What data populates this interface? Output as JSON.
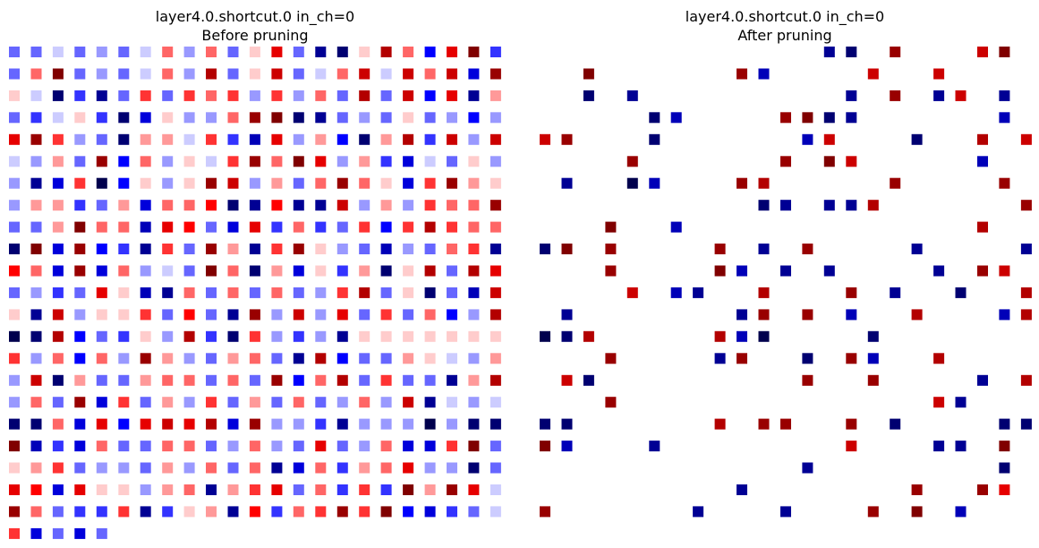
{
  "chart_data": [
    {
      "type": "heatmap",
      "title": "layer4.0.shortcut.0 in_ch=0",
      "subtitle": "Before pruning",
      "colormap": "seismic",
      "color_limits": [
        -1,
        1
      ],
      "axes": "off",
      "grid": false,
      "rows": 23,
      "cols": 23,
      "values": [
        [
          -0.3,
          -0.3,
          -0.1,
          -0.3,
          -0.2,
          -0.3,
          -0.1,
          0.3,
          -0.2,
          0.3,
          -0.3,
          0.1,
          0.6,
          -0.3,
          -0.8,
          -0.9,
          0.1,
          0.8,
          0.3,
          -0.5,
          0.6,
          1,
          -0.4
        ],
        [
          -0.3,
          0.3,
          1,
          -0.3,
          -0.2,
          -0.3,
          -0.1,
          0.3,
          -0.2,
          0.8,
          -0.3,
          0.1,
          0.7,
          -0.3,
          -0.1,
          0.3,
          0.7,
          -0.1,
          0.7,
          0.3,
          0.7,
          -0.6,
          0.9
        ],
        [
          0.1,
          -0.1,
          -0.9,
          -0.4,
          -0.8,
          -0.3,
          0.4,
          -0.3,
          0.4,
          0.3,
          0.4,
          -0.2,
          0.4,
          -0.2,
          0.3,
          -0.3,
          0.8,
          -0.3,
          0.7,
          -0.5,
          0.6,
          -0.8,
          0.2
        ],
        [
          -0.3,
          -0.4,
          -0.1,
          0.1,
          -0.4,
          -0.9,
          -0.6,
          0.1,
          -0.2,
          -0.2,
          0.3,
          0.9,
          1,
          -0.9,
          -0.8,
          -0.3,
          -0.2,
          -0.3,
          0.1,
          -0.3,
          -0.2,
          -0.5,
          -0.2
        ],
        [
          0.6,
          0.9,
          0.4,
          -0.2,
          -0.3,
          -0.9,
          0.2,
          0.2,
          -0.1,
          0.4,
          -0.4,
          -0.7,
          0.6,
          -0.2,
          0.2,
          -0.5,
          -0.9,
          0.2,
          0.8,
          -0.4,
          0.7,
          -0.2,
          0.7
        ],
        [
          -0.1,
          -0.2,
          0.2,
          -0.3,
          0.9,
          -0.5,
          0.3,
          -0.2,
          0.1,
          -0.1,
          0.4,
          0.9,
          0.3,
          1,
          0.6,
          -0.2,
          0.2,
          -0.4,
          -0.6,
          -0.1,
          -0.3,
          0.1,
          -0.2
        ],
        [
          -0.2,
          -0.8,
          -0.6,
          0.4,
          -1,
          -0.5,
          0.1,
          -0.2,
          0.1,
          0.9,
          0.7,
          -0.2,
          0.2,
          -0.3,
          0.3,
          0.9,
          0.3,
          0.1,
          -0.6,
          0.4,
          0.9,
          0.2,
          0.1
        ],
        [
          -0.2,
          0.2,
          0.2,
          -0.4,
          -0.3,
          0.2,
          -0.6,
          0.3,
          0.3,
          0.5,
          -0.9,
          -0.8,
          0.5,
          -0.8,
          -0.8,
          0.7,
          -0.2,
          0.2,
          -0.2,
          0.4,
          0.3,
          0.3,
          0.9
        ],
        [
          -0.3,
          -0.3,
          0.2,
          1,
          0.3,
          0.3,
          -0.7,
          0.6,
          0.5,
          -0.3,
          -0.6,
          0.6,
          -0.4,
          0.3,
          -0.4,
          -0.3,
          0.4,
          -0.5,
          0.4,
          0.8,
          0.4,
          0.3,
          0.3
        ],
        [
          -0.9,
          1,
          -0.6,
          0.9,
          -0.5,
          -0.4,
          -0.8,
          0.4,
          -0.3,
          0.9,
          0.2,
          -0.8,
          0.4,
          0.9,
          0.1,
          -0.2,
          -0.3,
          -0.7,
          -0.2,
          -0.3,
          0.3,
          0.4,
          -0.8
        ],
        [
          0.5,
          0.3,
          -0.6,
          0.9,
          -0.6,
          0.3,
          -0.2,
          -0.1,
          -0.3,
          1,
          0.3,
          -0.9,
          0.2,
          -0.6,
          0.1,
          -0.4,
          0.2,
          -0.9,
          0.1,
          0.8,
          -0.3,
          0.8,
          0.6
        ],
        [
          -0.3,
          -0.2,
          -0.4,
          -0.3,
          0.6,
          0.1,
          -0.7,
          -0.8,
          0.3,
          -0.3,
          0.3,
          -0.3,
          0.3,
          -0.3,
          -0.2,
          0.4,
          0.8,
          -0.3,
          0.1,
          -0.9,
          -0.3,
          -0.7,
          0.7
        ],
        [
          0.1,
          -0.8,
          0.7,
          -0.2,
          0.1,
          0.1,
          0.4,
          -0.3,
          0.5,
          -0.3,
          -0.8,
          0.9,
          -0.2,
          0.7,
          -0.2,
          0.6,
          -0.3,
          0.4,
          -0.3,
          0.3,
          -0.5,
          -0.2,
          0.8
        ],
        [
          -1,
          -0.9,
          0.8,
          -0.5,
          -0.3,
          -0.4,
          0.1,
          -0.2,
          0.8,
          -0.4,
          -0.9,
          0.4,
          -0.2,
          -0.4,
          -0.2,
          -0.8,
          0.1,
          0.1,
          0.1,
          0.1,
          0.1,
          0.1,
          0.1
        ],
        [
          0.4,
          -0.2,
          0.3,
          -0.5,
          0.3,
          -0.2,
          0.9,
          0.2,
          -0.2,
          -0.3,
          0.2,
          0.3,
          -0.3,
          -0.8,
          0.8,
          -0.5,
          -0.3,
          -0.3,
          0.2,
          0.1,
          -0.1,
          -0.2,
          0.2
        ],
        [
          -0.2,
          0.7,
          -0.9,
          0.2,
          -0.3,
          -0.3,
          0.2,
          0.3,
          0.3,
          -0.3,
          0.3,
          -0.3,
          0.9,
          -0.5,
          0.3,
          0.8,
          -0.3,
          0.4,
          -0.3,
          -0.3,
          -0.8,
          0.2,
          0.8
        ],
        [
          -0.2,
          0.3,
          -0.3,
          0.9,
          -0.6,
          0.4,
          -0.3,
          0.2,
          -0.2,
          0.4,
          -0.3,
          0.2,
          -0.3,
          0.3,
          -0.3,
          -0.2,
          0.3,
          -0.2,
          0.7,
          -0.8,
          -0.1,
          -0.2,
          -0.1
        ],
        [
          -0.9,
          -0.9,
          0.3,
          -0.6,
          0.6,
          -0.5,
          0.6,
          0.7,
          0.6,
          0.8,
          -0.6,
          0.9,
          -0.2,
          -0.2,
          -0.4,
          -0.8,
          -0.2,
          -0.2,
          -0.2,
          -1,
          -0.2,
          -0.9,
          -0.9
        ],
        [
          1,
          -0.7,
          -0.4,
          -0.6,
          0.3,
          -0.3,
          -0.3,
          0.3,
          0.3,
          -0.3,
          -0.2,
          0.3,
          -0.2,
          -0.3,
          0.6,
          -0.3,
          -0.2,
          0.3,
          -0.6,
          -0.6,
          0.4,
          1,
          -0.3
        ],
        [
          0.1,
          0.2,
          0.4,
          -0.3,
          -0.2,
          -0.2,
          -0.3,
          0.2,
          -0.2,
          0.3,
          -0.3,
          0.3,
          -0.8,
          -0.6,
          0.3,
          -0.4,
          0.2,
          0.3,
          0.6,
          -0.2,
          -0.2,
          -0.9,
          -0.3
        ],
        [
          0.6,
          0.5,
          -0.6,
          0.6,
          0.1,
          0.1,
          -0.2,
          0.2,
          0.3,
          -0.8,
          0.2,
          0.4,
          0.6,
          -0.3,
          0.3,
          -0.4,
          0.4,
          -0.4,
          1,
          0.2,
          0.9,
          0.6,
          -0.1
        ],
        [
          0.9,
          0.3,
          -0.3,
          -0.4,
          -0.4,
          0.4,
          -0.8,
          -0.4,
          0.1,
          0.2,
          -0.8,
          0.5,
          -0.4,
          0.3,
          0.4,
          0.9,
          0.4,
          1,
          -0.5,
          -0.6,
          -0.4,
          -0.3,
          -0.1
        ],
        [
          0.4,
          -0.6,
          -0.3,
          -0.6,
          -0.3,
          null,
          null,
          null,
          null,
          null,
          null,
          null,
          null,
          null,
          null,
          null,
          null,
          null,
          null,
          null,
          null,
          null,
          null
        ]
      ]
    },
    {
      "type": "heatmap",
      "title": "layer4.0.shortcut.0 in_ch=0",
      "subtitle": "After pruning",
      "colormap": "seismic",
      "color_limits": [
        -1,
        1
      ],
      "axes": "off",
      "grid": false,
      "rows": 23,
      "cols": 23,
      "values": [
        [
          0,
          0,
          0,
          0,
          0,
          0,
          0,
          0,
          0,
          0,
          0,
          0,
          0,
          -0.8,
          -0.9,
          0,
          0.9,
          0,
          0,
          0,
          0.7,
          1,
          0
        ],
        [
          0,
          0,
          1,
          0,
          0,
          0,
          0,
          0,
          0,
          0.9,
          -0.7,
          0,
          0,
          0,
          0,
          0.7,
          0,
          0,
          0.7,
          0,
          0,
          0,
          0
        ],
        [
          0,
          0,
          -0.9,
          0,
          -0.8,
          0,
          0,
          0,
          0,
          0,
          0,
          0,
          0,
          0,
          -0.8,
          0,
          0.9,
          0,
          -0.8,
          0.7,
          0,
          -0.8,
          0
        ],
        [
          0,
          0,
          0,
          0,
          0,
          -0.9,
          -0.7,
          0,
          0,
          0,
          0,
          0.9,
          1,
          -0.9,
          -0.8,
          0,
          0,
          0,
          0,
          0,
          0,
          -0.7,
          0
        ],
        [
          0.7,
          0.9,
          0,
          0,
          0,
          -0.9,
          0,
          0,
          0,
          0,
          0,
          0,
          -0.7,
          0.7,
          0,
          0,
          0,
          -0.9,
          0,
          0,
          0.8,
          0,
          0.7
        ],
        [
          0,
          0,
          0,
          0,
          0.9,
          0,
          0,
          0,
          0,
          0,
          0,
          0.9,
          0,
          1,
          0.7,
          0,
          0,
          0,
          0,
          0,
          -0.7,
          0,
          0
        ],
        [
          0,
          -0.8,
          0,
          0,
          -1,
          -0.7,
          0,
          0,
          0,
          0.9,
          0.8,
          0,
          0,
          0,
          0,
          0,
          0.9,
          0,
          0,
          0,
          0,
          0.9,
          0
        ],
        [
          0,
          0,
          0,
          0,
          0,
          0,
          0,
          0,
          0,
          0,
          -0.9,
          -0.8,
          0,
          -0.8,
          -0.8,
          0.8,
          0,
          0,
          0,
          0,
          0,
          0,
          0.9
        ],
        [
          0,
          0,
          0,
          1,
          0,
          0,
          -0.7,
          0,
          0,
          0,
          0,
          0,
          0,
          0,
          0,
          0,
          0,
          0,
          0,
          0,
          0.8,
          0,
          0
        ],
        [
          -0.9,
          1,
          0,
          0.9,
          0,
          0,
          0,
          0,
          0.9,
          0,
          -0.8,
          0,
          0.9,
          0,
          0,
          0,
          0,
          -0.8,
          0,
          0,
          0,
          0,
          -0.8
        ],
        [
          0,
          0,
          0,
          0.9,
          0,
          0,
          0,
          0,
          1,
          -0.7,
          0,
          -0.8,
          0,
          -0.8,
          0,
          0,
          0,
          0,
          -0.8,
          0,
          0.9,
          0.7,
          0
        ],
        [
          0,
          0,
          0,
          0,
          0.7,
          0,
          -0.7,
          -0.8,
          0,
          0,
          0.8,
          0,
          0,
          0,
          0.9,
          0,
          -0.8,
          0,
          0,
          -0.9,
          0,
          0,
          0.8
        ],
        [
          0,
          -0.8,
          0,
          0,
          0,
          0,
          0,
          0,
          0,
          -0.8,
          0.9,
          0,
          0.9,
          0,
          -0.7,
          0,
          0,
          0.8,
          0,
          0,
          0,
          -0.7,
          0.8
        ],
        [
          -1,
          -0.9,
          0.8,
          0,
          0,
          0,
          0,
          0,
          0.8,
          -0.7,
          -1,
          0,
          0,
          0,
          0,
          -0.9,
          0,
          0,
          0,
          0,
          0,
          0,
          0
        ],
        [
          0,
          0,
          0,
          0.9,
          0,
          0,
          0,
          0,
          -0.8,
          0.9,
          0,
          0,
          -0.9,
          0,
          0.9,
          -0.7,
          0,
          0,
          0.8,
          0,
          0,
          0,
          0
        ],
        [
          0,
          0.7,
          -0.9,
          0,
          0,
          0,
          0,
          0,
          0,
          0,
          0,
          0,
          0.9,
          0,
          0,
          0.9,
          0,
          0,
          0,
          0,
          -0.8,
          0,
          0.8
        ],
        [
          0,
          0,
          0,
          0.9,
          0,
          0,
          0,
          0,
          0,
          0,
          0,
          0,
          0,
          0,
          0,
          0,
          0,
          0,
          0.7,
          -0.8,
          0,
          0,
          0
        ],
        [
          -0.9,
          -0.9,
          0,
          0,
          0,
          0,
          0,
          0,
          0.8,
          0,
          0.9,
          0.9,
          0,
          0,
          0.9,
          0,
          -0.9,
          0,
          0,
          0,
          0,
          -0.9,
          -0.9
        ],
        [
          1,
          -0.7,
          0,
          0,
          0,
          -0.8,
          0,
          0,
          0,
          0,
          0,
          0,
          0,
          0,
          0.7,
          0,
          0,
          0,
          -0.8,
          -0.8,
          0,
          1,
          0
        ],
        [
          0,
          0,
          0,
          0,
          0,
          0,
          0,
          0,
          0,
          0,
          0,
          0,
          -0.8,
          0,
          0,
          0,
          0,
          0,
          0,
          0,
          0,
          -0.9,
          0
        ],
        [
          0,
          0,
          0,
          0,
          0,
          0,
          0,
          0,
          0,
          -0.8,
          0,
          0,
          0,
          0,
          0,
          0,
          0,
          0.9,
          0,
          0,
          0.9,
          0.6,
          0
        ],
        [
          0.9,
          0,
          0,
          0,
          0,
          0,
          0,
          -0.8,
          0,
          0,
          0,
          -0.8,
          0,
          0,
          0,
          0.9,
          0,
          1,
          0,
          -0.7,
          0,
          0,
          0
        ],
        [
          0,
          0,
          0,
          0,
          0,
          null,
          null,
          null,
          null,
          null,
          null,
          null,
          null,
          null,
          null,
          null,
          null,
          null,
          null,
          null,
          null,
          null,
          null
        ]
      ]
    }
  ]
}
